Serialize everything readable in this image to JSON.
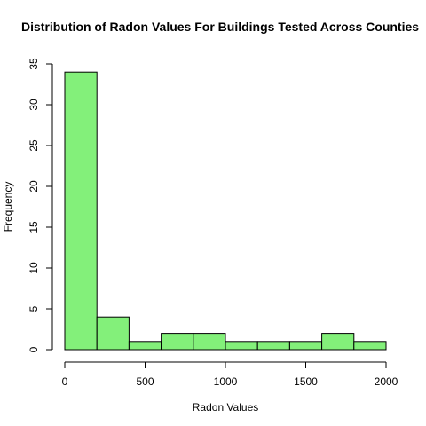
{
  "chart_data": {
    "type": "bar",
    "histogram": true,
    "title": "Distribution of Radon Values For Buildings Tested Across Counties",
    "xlabel": "Radon Values",
    "ylabel": "Frequency",
    "bin_edges": [
      0,
      200,
      400,
      600,
      800,
      1000,
      1200,
      1400,
      1600,
      1800,
      2000
    ],
    "categories": [
      "0-200",
      "200-400",
      "400-600",
      "600-800",
      "800-1000",
      "1000-1200",
      "1200-1400",
      "1400-1600",
      "1600-1800",
      "1800-2000"
    ],
    "values": [
      34,
      4,
      1,
      2,
      2,
      1,
      1,
      1,
      2,
      1
    ],
    "xlim": [
      0,
      2000
    ],
    "ylim": [
      0,
      35
    ],
    "x_ticks": [
      0,
      500,
      1000,
      1500,
      2000
    ],
    "y_ticks": [
      0,
      5,
      10,
      15,
      20,
      25,
      30,
      35
    ],
    "grid": false,
    "legend": "none",
    "bar_color": "#83F07A",
    "bar_edge_color": "#000000"
  }
}
